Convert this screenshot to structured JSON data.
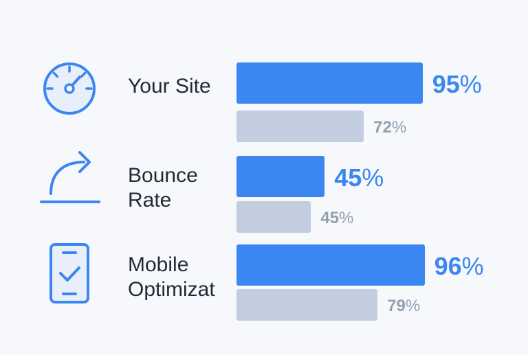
{
  "chart_data": {
    "type": "bar",
    "orientation": "horizontal",
    "categories": [
      "Your Site",
      "Bounce\nRate",
      "Mobile\nOptimizat"
    ],
    "series": [
      {
        "values": [
          95,
          45,
          96
        ]
      },
      {
        "values": [
          72,
          45,
          79
        ]
      }
    ],
    "value_suffix": "%",
    "xlim": [
      0,
      100
    ],
    "grid": false,
    "legend": "none"
  },
  "icons": [
    "speedometer-icon",
    "curved-arrow-icon",
    "mobile-check-icon"
  ],
  "colors": {
    "primary": "#3b86f0",
    "secondary": "#c2cde0",
    "primary_text": "#3b86f0",
    "secondary_text": "#93a0b2",
    "label": "#1f2a37"
  }
}
